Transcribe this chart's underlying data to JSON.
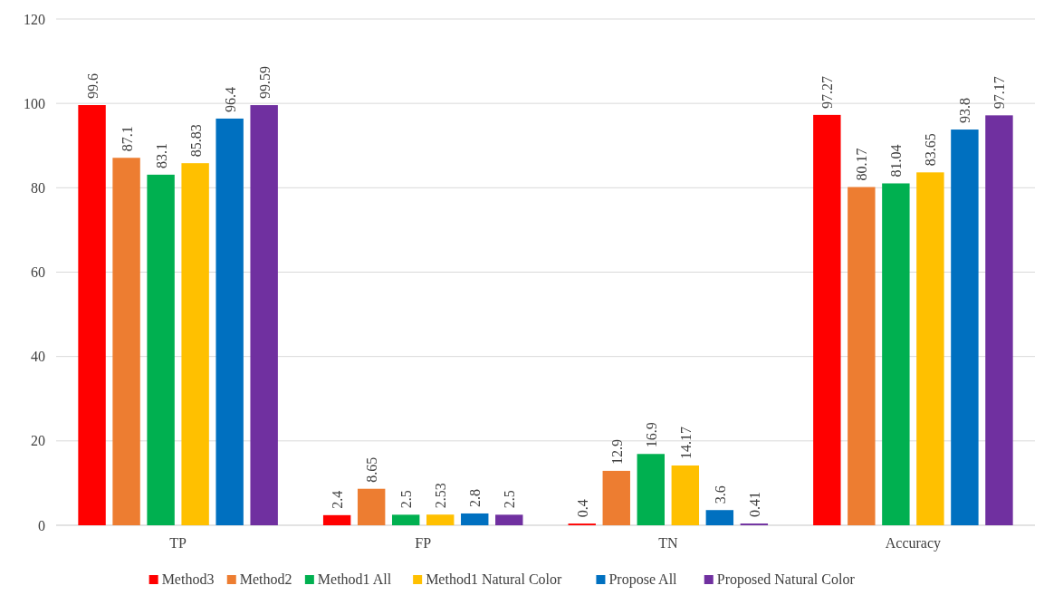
{
  "chart_data": {
    "type": "bar",
    "categories": [
      "TP",
      "FP",
      "TN",
      "Accuracy"
    ],
    "series": [
      {
        "name": "Method3",
        "color": "#ff0000",
        "values": [
          99.6,
          2.4,
          0.4,
          97.27
        ]
      },
      {
        "name": "Method2",
        "color": "#ed7d31",
        "values": [
          87.1,
          8.65,
          12.9,
          80.17
        ]
      },
      {
        "name": "Method1 All",
        "color": "#00b050",
        "values": [
          83.1,
          2.5,
          16.9,
          81.04
        ]
      },
      {
        "name": "Method1 Natural Color",
        "color": "#ffc000",
        "values": [
          85.83,
          2.53,
          14.17,
          83.65
        ]
      },
      {
        "name": "Propose All",
        "color": "#0070c0",
        "values": [
          96.4,
          2.8,
          3.6,
          93.8
        ]
      },
      {
        "name": "Proposed Natural Color",
        "color": "#7030a0",
        "values": [
          99.59,
          2.5,
          0.41,
          97.17
        ]
      }
    ],
    "ylim": [
      0,
      120
    ],
    "yticks": [
      0,
      20,
      40,
      60,
      80,
      100,
      120
    ],
    "grid": "y",
    "legend": "bottom",
    "data_labels": true
  }
}
